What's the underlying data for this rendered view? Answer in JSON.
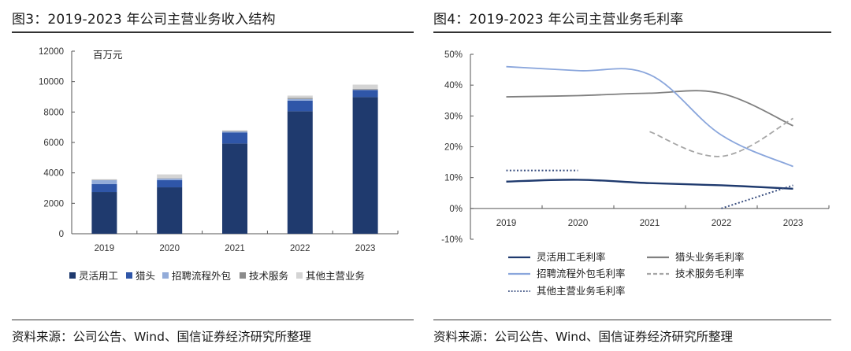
{
  "left": {
    "title": "图3：2019-2023 年公司主营业务收入结构",
    "source": "资料来源：公司公告、Wind、国信证券经济研究所整理"
  },
  "right": {
    "title": "图4：2019-2023 年公司主营业务毛利率",
    "source": "资料来源：公司公告、Wind、国信证券经济研究所整理"
  },
  "chart_data": [
    {
      "type": "bar",
      "stacked": true,
      "title": "2019-2023 年公司主营业务收入结构",
      "unit_label": "百万元",
      "xlabel": "",
      "ylabel": "",
      "categories": [
        "2019",
        "2020",
        "2021",
        "2022",
        "2023"
      ],
      "ylim": [
        0,
        12000
      ],
      "yticks": [
        0,
        2000,
        4000,
        6000,
        8000,
        10000,
        12000
      ],
      "ytick_labels": [
        "0",
        "2000",
        "4000",
        "6000",
        "8000",
        "10000",
        "12000"
      ],
      "grid": false,
      "legend_position": "bottom",
      "series": [
        {
          "name": "灵活用工",
          "color": "#1f3a6e",
          "values": [
            2740,
            3050,
            5930,
            8050,
            8980
          ]
        },
        {
          "name": "猎头",
          "color": "#2f56a8",
          "values": [
            520,
            470,
            730,
            700,
            460
          ]
        },
        {
          "name": "招聘流程外包",
          "color": "#93acd9",
          "values": [
            260,
            110,
            60,
            110,
            20
          ]
        },
        {
          "name": "技术服务",
          "color": "#8c8c8c",
          "values": [
            20,
            20,
            40,
            60,
            50
          ]
        },
        {
          "name": "其他主营业务",
          "color": "#d4d4d4",
          "values": [
            40,
            250,
            30,
            160,
            290
          ]
        }
      ]
    },
    {
      "type": "line",
      "title": "2019-2023 年公司主营业务毛利率",
      "xlabel": "",
      "ylabel": "",
      "categories": [
        "2019",
        "2020",
        "2021",
        "2022",
        "2023"
      ],
      "ylim": [
        -10,
        50
      ],
      "yticks": [
        -10,
        0,
        10,
        20,
        30,
        40,
        50
      ],
      "ytick_labels": [
        "-10%",
        "0%",
        "10%",
        "20%",
        "30%",
        "40%",
        "50%"
      ],
      "value_unit": "%",
      "grid": false,
      "legend_position": "bottom",
      "series": [
        {
          "name": "灵活用工毛利率",
          "color": "#1f3a6e",
          "style": "solid",
          "values": [
            8.7,
            9.3,
            8.2,
            7.5,
            6.4
          ]
        },
        {
          "name": "猎头业务毛利率",
          "color": "#808080",
          "style": "solid",
          "values": [
            36.2,
            36.6,
            37.4,
            37.3,
            26.8
          ]
        },
        {
          "name": "招聘流程外包毛利率",
          "color": "#8aa6dc",
          "style": "solid",
          "values": [
            46.0,
            44.7,
            43.4,
            23.8,
            13.6
          ]
        },
        {
          "name": "技术服务毛利率",
          "color": "#a6a6a6",
          "style": "dashed",
          "values": [
            null,
            null,
            24.9,
            16.9,
            29.2
          ]
        },
        {
          "name": "其他主营业务毛利率",
          "color": "#3a4f80",
          "style": "dotted",
          "values": [
            12.3,
            12.3,
            null,
            0.0,
            7.5
          ]
        }
      ]
    }
  ]
}
